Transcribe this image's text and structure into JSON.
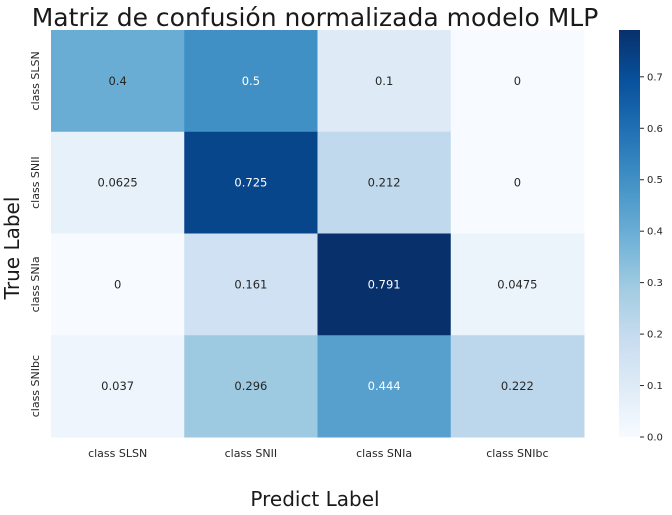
{
  "chart_data": {
    "type": "heatmap",
    "title": "Matriz de confusión normalizada modelo MLP",
    "xlabel": "Predict Label",
    "ylabel": "True Label",
    "x_categories": [
      "class SLSN",
      "class SNII",
      "class SNIa",
      "class SNIbc"
    ],
    "y_categories": [
      "class SLSN",
      "class SNII",
      "class SNIa",
      "class SNIbc"
    ],
    "values": [
      [
        0.4,
        0.5,
        0.1,
        0
      ],
      [
        0.0625,
        0.725,
        0.212,
        0
      ],
      [
        0,
        0.161,
        0.791,
        0.0475
      ],
      [
        0.037,
        0.296,
        0.444,
        0.222
      ]
    ],
    "value_labels": [
      [
        "0.4",
        "0.5",
        "0.1",
        "0"
      ],
      [
        "0.0625",
        "0.725",
        "0.212",
        "0"
      ],
      [
        "0",
        "0.161",
        "0.791",
        "0.0475"
      ],
      [
        "0.037",
        "0.296",
        "0.444",
        "0.222"
      ]
    ],
    "colormap": "Blues",
    "colorbar": {
      "range": [
        0,
        0.791
      ],
      "ticks": [
        0.0,
        0.1,
        0.2,
        0.3,
        0.4,
        0.5,
        0.6,
        0.7
      ],
      "tick_labels": [
        "0.0",
        "0.1",
        "0.2",
        "0.3",
        "0.4",
        "0.5",
        "0.6",
        "0.7"
      ]
    },
    "grid": false
  }
}
